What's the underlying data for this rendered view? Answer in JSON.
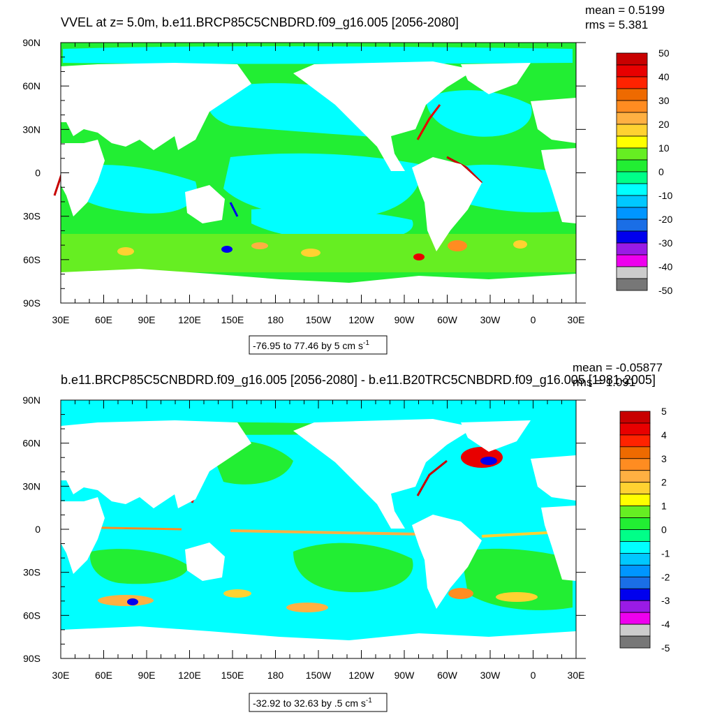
{
  "colors": {
    "top": [
      "#777777",
      "#cccccc",
      "#ee00ee",
      "#9a1be6",
      "#0000ee",
      "#1a6ee6",
      "#0096ff",
      "#00c8ff",
      "#00ffff",
      "#00ff88",
      "#22ee33",
      "#66ee22",
      "#ffff00",
      "#ffd231",
      "#ffb042",
      "#ff8c21",
      "#ee6a00",
      "#ff2300",
      "#e80000",
      "#c80000"
    ],
    "diff": [
      "#777777",
      "#cccccc",
      "#ee00ee",
      "#9a1be6",
      "#0000ee",
      "#1a6ee6",
      "#0096ff",
      "#00c8ff",
      "#00ffff",
      "#00ff88",
      "#22ee33",
      "#66ee22",
      "#ffff00",
      "#ffd231",
      "#ffb042",
      "#ff8c21",
      "#ee6a00",
      "#ff2300",
      "#e80000",
      "#c80000"
    ],
    "land": "#ffffff"
  },
  "chart_data": [
    {
      "type": "heatmap",
      "title": "VVEL at z=   5.0m, b.e11.BRCP85C5CNBDRD.f09_g16.005 [2056-2080]",
      "stats": {
        "mean": "mean = 0.5199",
        "rms": "rms = 5.381"
      },
      "x_ticks": [
        "30E",
        "60E",
        "90E",
        "120E",
        "150E",
        "180",
        "150W",
        "120W",
        "90W",
        "60W",
        "30W",
        "0",
        "30E"
      ],
      "y_ticks": [
        "90N",
        "60N",
        "30N",
        "0",
        "30S",
        "60S",
        "90S"
      ],
      "xlim": [
        30,
        390
      ],
      "ylim": [
        -90,
        90
      ],
      "colorbar_labels": [
        "50",
        "40",
        "30",
        "20",
        "10",
        "0",
        "-10",
        "-20",
        "-30",
        "-40",
        "-50"
      ],
      "range_label": {
        "prefix": "-76.95 to 77.46 by 5 cm s",
        "sup": "-1"
      },
      "levels": [
        -50,
        50
      ],
      "grid": false
    },
    {
      "type": "heatmap",
      "title": "b.e11.BRCP85C5CNBDRD.f09_g16.005 [2056-2080] - b.e11.B20TRC5CNBDRD.f09_g16.005 [1981-2005]",
      "stats": {
        "mean": "mean = -0.05877",
        "rms": "rms = 1.091"
      },
      "x_ticks": [
        "30E",
        "60E",
        "90E",
        "120E",
        "150E",
        "180",
        "150W",
        "120W",
        "90W",
        "60W",
        "30W",
        "0",
        "30E"
      ],
      "y_ticks": [
        "90N",
        "60N",
        "30N",
        "0",
        "30S",
        "60S",
        "90S"
      ],
      "xlim": [
        30,
        390
      ],
      "ylim": [
        -90,
        90
      ],
      "colorbar_labels": [
        "5",
        "4",
        "3",
        "2",
        "1",
        "0",
        "-1",
        "-2",
        "-3",
        "-4",
        "-5"
      ],
      "range_label": {
        "prefix": "-32.92 to 32.63 by .5 cm s",
        "sup": "-1"
      },
      "levels": [
        -5,
        5
      ],
      "grid": false
    }
  ]
}
